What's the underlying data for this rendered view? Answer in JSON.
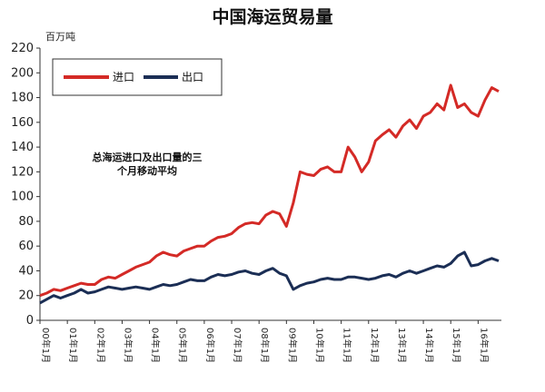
{
  "chart_data": {
    "type": "line",
    "title": "中国海运贸易量",
    "ylabel": "百万吨",
    "xlabel": "",
    "ylim": [
      0,
      220
    ],
    "yticks": [
      0,
      20,
      40,
      60,
      80,
      100,
      120,
      140,
      160,
      180,
      200,
      220
    ],
    "grid": false,
    "legend_position": "top-left",
    "annotation": [
      "总海运进口及出口量的三",
      "个月移动平均"
    ],
    "x_tick_labels": [
      "00年1月",
      "01年1月",
      "02年1月",
      "03年1月",
      "04年1月",
      "05年1月",
      "06年1月",
      "07年1月",
      "08年1月",
      "09年1月",
      "10年1月",
      "11年1月",
      "12年1月",
      "13年1月",
      "14年1月",
      "15年1月",
      "16年1月"
    ],
    "x": [
      2000.0,
      2000.25,
      2000.5,
      2000.75,
      2001.0,
      2001.25,
      2001.5,
      2001.75,
      2002.0,
      2002.25,
      2002.5,
      2002.75,
      2003.0,
      2003.25,
      2003.5,
      2003.75,
      2004.0,
      2004.25,
      2004.5,
      2004.75,
      2005.0,
      2005.25,
      2005.5,
      2005.75,
      2006.0,
      2006.25,
      2006.5,
      2006.75,
      2007.0,
      2007.25,
      2007.5,
      2007.75,
      2008.0,
      2008.25,
      2008.5,
      2008.75,
      2009.0,
      2009.25,
      2009.5,
      2009.75,
      2010.0,
      2010.25,
      2010.5,
      2010.75,
      2011.0,
      2011.25,
      2011.5,
      2011.75,
      2012.0,
      2012.25,
      2012.5,
      2012.75,
      2013.0,
      2013.25,
      2013.5,
      2013.75,
      2014.0,
      2014.25,
      2014.5,
      2014.75,
      2015.0,
      2015.25,
      2015.5,
      2015.75,
      2016.0,
      2016.25,
      2016.5,
      2016.75
    ],
    "series": [
      {
        "name": "进口",
        "color": "#d42a26",
        "values": [
          20,
          22,
          25,
          24,
          26,
          28,
          30,
          29,
          29,
          33,
          35,
          34,
          37,
          40,
          43,
          45,
          47,
          52,
          55,
          53,
          52,
          56,
          58,
          60,
          60,
          64,
          67,
          68,
          70,
          75,
          78,
          79,
          78,
          85,
          88,
          86,
          76,
          95,
          120,
          118,
          117,
          122,
          124,
          120,
          120,
          140,
          132,
          120,
          128,
          145,
          150,
          154,
          148,
          157,
          162,
          155,
          165,
          168,
          175,
          170,
          190,
          172,
          175,
          168,
          165,
          178,
          188,
          185
        ]
      },
      {
        "name": "出口",
        "color": "#1b2e55",
        "values": [
          14,
          17,
          20,
          18,
          20,
          22,
          25,
          22,
          23,
          25,
          27,
          26,
          25,
          26,
          27,
          26,
          25,
          27,
          29,
          28,
          29,
          31,
          33,
          32,
          32,
          35,
          37,
          36,
          37,
          39,
          40,
          38,
          37,
          40,
          42,
          38,
          36,
          25,
          28,
          30,
          31,
          33,
          34,
          33,
          33,
          35,
          35,
          34,
          33,
          34,
          36,
          37,
          35,
          38,
          40,
          38,
          40,
          42,
          44,
          43,
          46,
          52,
          55,
          44,
          45,
          48,
          50,
          48
        ]
      }
    ]
  }
}
